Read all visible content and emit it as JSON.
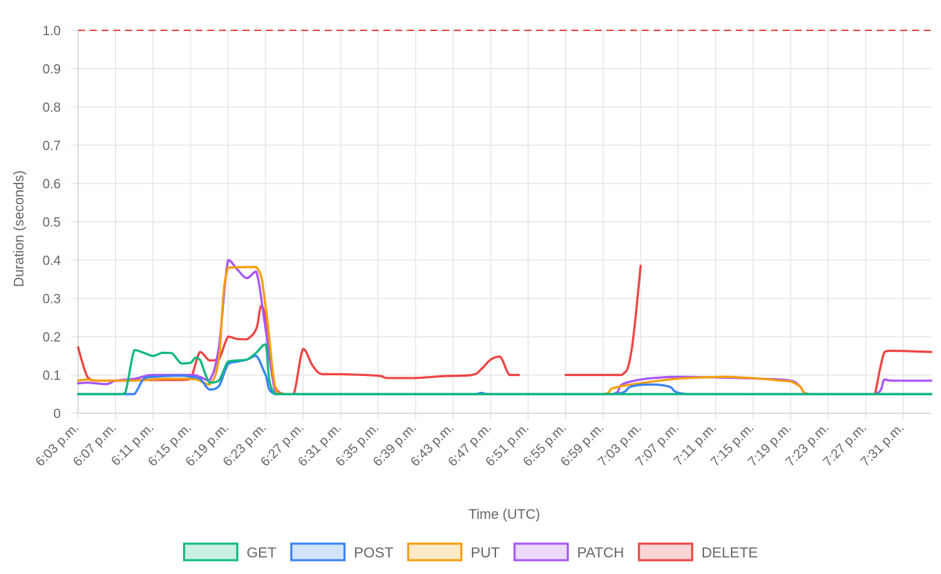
{
  "chart_data": {
    "type": "line",
    "xlabel": "Time (UTC)",
    "ylabel": "Duration (seconds)",
    "ylim": [
      0,
      1.0
    ],
    "yticks": [
      "0",
      "0.1",
      "0.2",
      "0.3",
      "0.4",
      "0.5",
      "0.6",
      "0.7",
      "0.8",
      "0.9",
      "1.0"
    ],
    "x_tick_labels": [
      "6:03 p.m.",
      "6:07 p.m.",
      "6:11 p.m.",
      "6:15 p.m.",
      "6:19 p.m.",
      "6:23 p.m.",
      "6:27 p.m.",
      "6:31 p.m.",
      "6:35 p.m.",
      "6:39 p.m.",
      "6:43 p.m.",
      "6:47 p.m.",
      "6:51 p.m.",
      "6:55 p.m.",
      "6:59 p.m.",
      "7:03 p.m.",
      "7:07 p.m.",
      "7:11 p.m.",
      "7:15 p.m.",
      "7:19 p.m.",
      "7:23 p.m.",
      "7:27 p.m.",
      "7:31 p.m."
    ],
    "x_range": [
      "6:03 p.m.",
      "7:34 p.m."
    ],
    "threshold": {
      "value": 1.0,
      "color": "#ef4444",
      "style": "dashed"
    },
    "grid": true,
    "legend_position": "bottom",
    "series": [
      {
        "name": "GET",
        "color": "#10b981",
        "points": [
          [
            "6:03 p.m.",
            0.05
          ],
          [
            "6:07 p.m.",
            0.05
          ],
          [
            "6:08 p.m.",
            0.052
          ],
          [
            "6:09 p.m.",
            0.165
          ],
          [
            "6:10 p.m.",
            0.158
          ],
          [
            "6:11 p.m.",
            0.15
          ],
          [
            "6:12 p.m.",
            0.158
          ],
          [
            "6:13 p.m.",
            0.157
          ],
          [
            "6:14 p.m.",
            0.13
          ],
          [
            "6:15 p.m.",
            0.132
          ],
          [
            "6:15:30 p.m.",
            0.145
          ],
          [
            "6:16 p.m.",
            0.14
          ],
          [
            "6:17 p.m.",
            0.08
          ],
          [
            "6:18 p.m.",
            0.085
          ],
          [
            "6:19 p.m.",
            0.135
          ],
          [
            "6:20 p.m.",
            0.138
          ],
          [
            "6:21 p.m.",
            0.14
          ],
          [
            "6:22 p.m.",
            0.158
          ],
          [
            "6:23 p.m.",
            0.18
          ],
          [
            "6:24 p.m.",
            0.05
          ],
          [
            "7:34 p.m.",
            0.05
          ]
        ]
      },
      {
        "name": "POST",
        "color": "#3b82f6",
        "points": [
          [
            "6:03 p.m.",
            0.05
          ],
          [
            "6:08 p.m.",
            0.05
          ],
          [
            "6:09 p.m.",
            0.05
          ],
          [
            "6:10 p.m.",
            0.09
          ],
          [
            "6:11 p.m.",
            0.095
          ],
          [
            "6:14 p.m.",
            0.098
          ],
          [
            "6:15 p.m.",
            0.095
          ],
          [
            "6:16 p.m.",
            0.09
          ],
          [
            "6:17 p.m.",
            0.062
          ],
          [
            "6:18 p.m.",
            0.07
          ],
          [
            "6:19 p.m.",
            0.128
          ],
          [
            "6:20 p.m.",
            0.135
          ],
          [
            "6:21 p.m.",
            0.14
          ],
          [
            "6:22 p.m.",
            0.15
          ],
          [
            "6:23 p.m.",
            0.1
          ],
          [
            "6:24 p.m.",
            0.05
          ],
          [
            "6:45 p.m.",
            0.05
          ],
          [
            "6:46 p.m.",
            0.053
          ],
          [
            "6:47 p.m.",
            0.05
          ],
          [
            "7:00 p.m.",
            0.05
          ],
          [
            "7:02 p.m.",
            0.07
          ],
          [
            "7:04 p.m.",
            0.075
          ],
          [
            "7:06 p.m.",
            0.07
          ],
          [
            "7:08 p.m.",
            0.05
          ],
          [
            "7:34 p.m.",
            0.05
          ]
        ]
      },
      {
        "name": "PUT",
        "color": "#f59e0b",
        "points": [
          [
            "6:03 p.m.",
            0.085
          ],
          [
            "6:04 p.m.",
            0.088
          ],
          [
            "6:05 p.m.",
            0.085
          ],
          [
            "6:08 p.m.",
            0.085
          ],
          [
            "6:09 p.m.",
            0.085
          ],
          [
            "6:12 p.m.",
            0.09
          ],
          [
            "6:15 p.m.",
            0.09
          ],
          [
            "6:16 p.m.",
            0.085
          ],
          [
            "6:17 p.m.",
            0.075
          ],
          [
            "6:18 p.m.",
            0.14
          ],
          [
            "6:19 p.m.",
            0.38
          ],
          [
            "6:22 p.m.",
            0.382
          ],
          [
            "6:23 p.m.",
            0.28
          ],
          [
            "6:24 p.m.",
            0.07
          ],
          [
            "6:25 p.m.",
            0.05
          ],
          [
            "6:59 p.m.",
            0.05
          ],
          [
            "7:00 p.m.",
            0.065
          ],
          [
            "7:02 p.m.",
            0.075
          ],
          [
            "7:06 p.m.",
            0.088
          ],
          [
            "7:08 p.m.",
            0.092
          ],
          [
            "7:12 p.m.",
            0.095
          ],
          [
            "7:14 p.m.",
            0.093
          ],
          [
            "7:16 p.m.",
            0.09
          ],
          [
            "7:18 p.m.",
            0.085
          ],
          [
            "7:19 p.m.",
            0.083
          ],
          [
            "7:20 p.m.",
            0.07
          ],
          [
            "7:21 p.m.",
            0.05
          ],
          [
            "7:34 p.m.",
            0.05
          ]
        ]
      },
      {
        "name": "PATCH",
        "color": "#a855f7",
        "points": [
          [
            "6:03 p.m.",
            0.078
          ],
          [
            "6:04 p.m.",
            0.08
          ],
          [
            "6:06 p.m.",
            0.076
          ],
          [
            "6:07 p.m.",
            0.085
          ],
          [
            "6:09 p.m.",
            0.09
          ],
          [
            "6:10 p.m.",
            0.096
          ],
          [
            "6:11 p.m.",
            0.1
          ],
          [
            "6:15 p.m.",
            0.1
          ],
          [
            "6:16 p.m.",
            0.095
          ],
          [
            "6:17 p.m.",
            0.085
          ],
          [
            "6:18 p.m.",
            0.17
          ],
          [
            "6:19 p.m.",
            0.4
          ],
          [
            "6:20 p.m.",
            0.375
          ],
          [
            "6:21 p.m.",
            0.353
          ],
          [
            "6:22 p.m.",
            0.37
          ],
          [
            "6:23 p.m.",
            0.22
          ],
          [
            "6:24 p.m.",
            0.06
          ],
          [
            "6:25 p.m.",
            0.05
          ],
          [
            "7:00 p.m.",
            0.05
          ],
          [
            "7:01 p.m.",
            0.075
          ],
          [
            "7:03 p.m.",
            0.088
          ],
          [
            "7:05 p.m.",
            0.093
          ],
          [
            "7:07 p.m.",
            0.095
          ],
          [
            "7:12 p.m.",
            0.093
          ],
          [
            "7:16 p.m.",
            0.09
          ],
          [
            "7:19 p.m.",
            0.085
          ],
          [
            "7:20 p.m.",
            0.07
          ],
          [
            "7:21 p.m.",
            0.05
          ],
          [
            "7:28 p.m.",
            0.05
          ],
          [
            "7:29 p.m.",
            0.088
          ],
          [
            "7:30 p.m.",
            0.085
          ],
          [
            "7:34 p.m.",
            0.085
          ]
        ]
      },
      {
        "name": "DELETE",
        "color": "#ef4444",
        "points": [
          [
            "6:03 p.m.",
            0.172
          ],
          [
            "6:04 p.m.",
            0.095
          ],
          [
            "6:05 p.m.",
            0.085
          ],
          [
            "6:07 p.m.",
            0.085
          ],
          [
            "6:10 p.m.",
            0.087
          ],
          [
            "6:14 p.m.",
            0.087
          ],
          [
            "6:15 p.m.",
            0.09
          ],
          [
            "6:16 p.m.",
            0.16
          ],
          [
            "6:17 p.m.",
            0.138
          ],
          [
            "6:18 p.m.",
            0.14
          ],
          [
            "6:19 p.m.",
            0.2
          ],
          [
            "6:20 p.m.",
            0.194
          ],
          [
            "6:21 p.m.",
            0.193
          ],
          [
            "6:22 p.m.",
            0.22
          ],
          [
            "6:22:30 p.m.",
            0.28
          ],
          [
            "6:23 p.m.",
            0.25
          ],
          [
            "6:24 p.m.",
            0.07
          ],
          [
            "6:25 p.m.",
            0.05
          ],
          [
            "6:26 p.m.",
            0.05
          ],
          [
            "6:27 p.m.",
            0.168
          ],
          [
            "6:28 p.m.",
            0.125
          ],
          [
            "6:29 p.m.",
            0.102
          ],
          [
            "6:31 p.m.",
            0.102
          ],
          [
            "6:35 p.m.",
            0.098
          ],
          [
            "6:36 p.m.",
            0.092
          ],
          [
            "6:39 p.m.",
            0.092
          ],
          [
            "6:42 p.m.",
            0.097
          ],
          [
            "6:45 p.m.",
            0.1
          ],
          [
            "6:46 p.m.",
            0.115
          ],
          [
            "6:47 p.m.",
            0.14
          ],
          [
            "6:48 p.m.",
            0.148
          ],
          [
            "6:49 p.m.",
            0.1
          ],
          [
            "6:50 p.m.",
            0.1
          ],
          [
            "6:51 p.m.",
            null
          ],
          [
            "6:54 p.m.",
            null
          ],
          [
            "6:55 p.m.",
            0.1
          ],
          [
            "6:59 p.m.",
            0.1
          ],
          [
            "7:01 p.m.",
            0.1
          ],
          [
            "7:02 p.m.",
            0.16
          ],
          [
            "7:03 p.m.",
            0.385
          ],
          [
            "7:04 p.m.",
            null
          ],
          [
            "7:27 p.m.",
            null
          ],
          [
            "7:28 p.m.",
            0.05
          ],
          [
            "7:29 p.m.",
            0.16
          ],
          [
            "7:30 p.m.",
            0.163
          ],
          [
            "7:34 p.m.",
            0.16
          ]
        ]
      }
    ]
  }
}
